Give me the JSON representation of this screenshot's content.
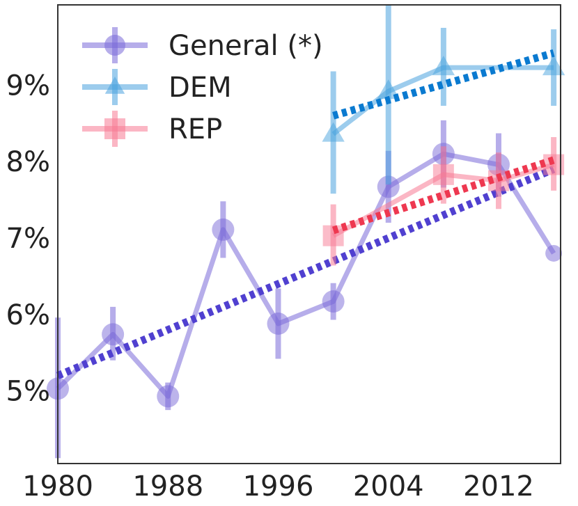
{
  "chart_data": {
    "type": "line",
    "title": "",
    "xlabel": "",
    "ylabel": "",
    "xlim": [
      1980,
      2016.5
    ],
    "ylim": [
      4.05,
      10.05
    ],
    "x_ticks": [
      1980,
      1988,
      1996,
      2004,
      2012
    ],
    "x_tick_labels": [
      "1980",
      "1988",
      "1996",
      "2004",
      "2012"
    ],
    "y_ticks": [
      5,
      6,
      7,
      8,
      9
    ],
    "y_tick_labels": [
      "5%",
      "6%",
      "7%",
      "8%",
      "9%"
    ],
    "grid": false,
    "legend_position": "top-left",
    "series": [
      {
        "name": "General (*)",
        "color": "#7a6ad8",
        "marker": "circle",
        "x": [
          1980,
          1984,
          1988,
          1992,
          1996,
          2000,
          2004,
          2008,
          2012,
          2016
        ],
        "y": [
          5.03,
          5.74,
          4.93,
          7.11,
          5.88,
          6.17,
          7.67,
          8.1,
          7.96,
          6.8
        ],
        "err_low": [
          4.12,
          5.4,
          4.75,
          6.74,
          5.42,
          5.93,
          7.2,
          7.66,
          7.54,
          6.8
        ],
        "err_high": [
          5.96,
          6.1,
          5.11,
          7.48,
          6.34,
          6.41,
          8.14,
          8.54,
          8.37,
          6.8
        ],
        "trend": [
          [
            1980,
            5.2
          ],
          [
            2016,
            7.9
          ]
        ],
        "trend_color": "#5040d0"
      },
      {
        "name": "DEM",
        "color": "#4aa3de",
        "marker": "triangle",
        "x": [
          2000,
          2004,
          2008,
          2016
        ],
        "y": [
          8.36,
          8.92,
          9.23,
          9.23
        ],
        "err_low": [
          7.58,
          7.7,
          8.73,
          8.73
        ],
        "err_high": [
          9.18,
          10.05,
          9.75,
          9.73
        ],
        "trend": [
          [
            2000,
            8.6
          ],
          [
            2016,
            9.42
          ]
        ],
        "trend_color": "#0a7ad0"
      },
      {
        "name": "REP",
        "color": "#f87a93",
        "marker": "square",
        "x": [
          2000,
          2008,
          2012,
          2016
        ],
        "y": [
          7.03,
          7.83,
          7.75,
          7.96
        ],
        "err_low": [
          6.64,
          7.45,
          7.38,
          7.62
        ],
        "err_high": [
          7.44,
          8.2,
          8.12,
          8.32
        ],
        "trend": [
          [
            2000,
            7.1
          ],
          [
            2016,
            8.02
          ]
        ],
        "trend_color": "#ee3850"
      }
    ]
  }
}
